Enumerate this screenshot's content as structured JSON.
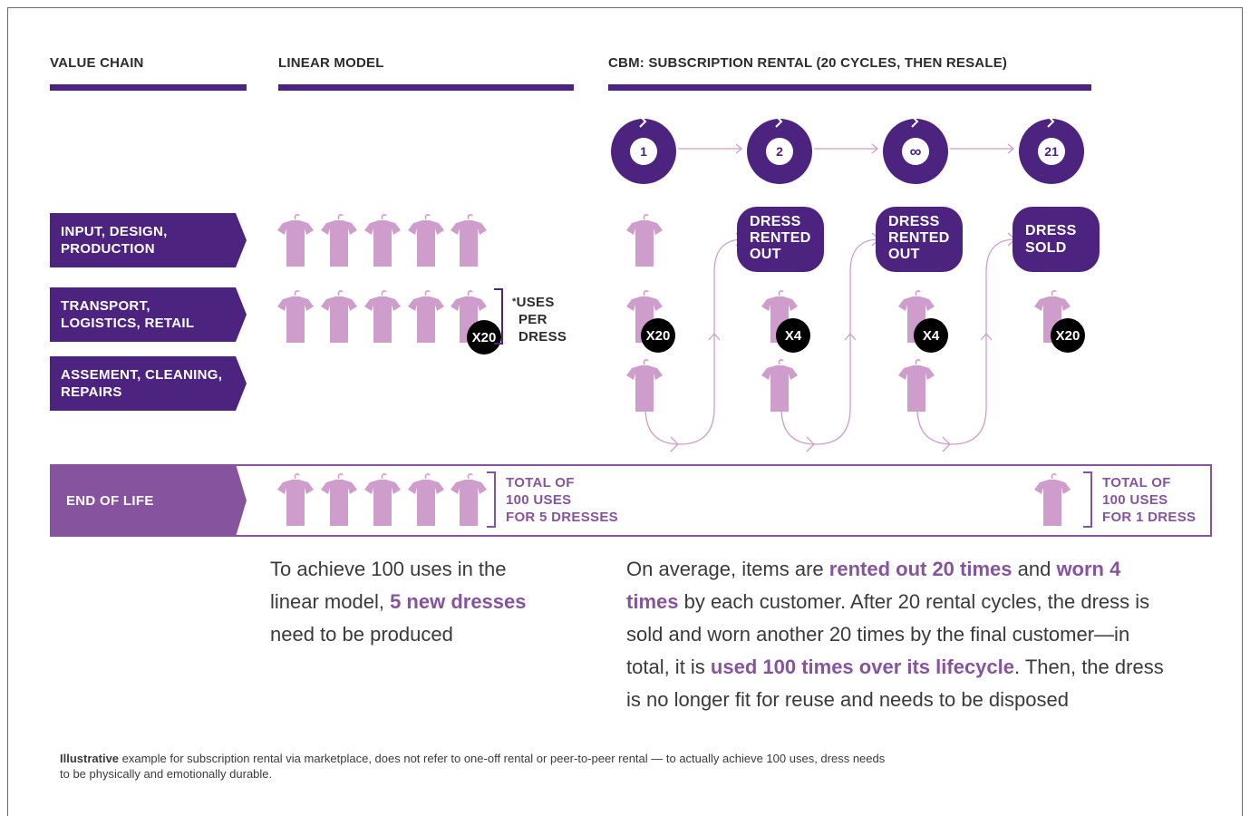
{
  "headers": {
    "value_chain": "VALUE CHAIN",
    "linear_model": "LINEAR MODEL",
    "cbm": "CBM: SUBSCRIPTION RENTAL (20 CYCLES, THEN RESALE)"
  },
  "stages": [
    {
      "line1": "INPUT, DESIGN,",
      "line2": "PRODUCTION"
    },
    {
      "line1": "TRANSPORT,",
      "line2": "LOGISTICS, RETAIL"
    },
    {
      "line1": "ASSEMENT, CLEANING,",
      "line2": "REPAIRS"
    },
    {
      "line1": "END OF LIFE",
      "line2": ""
    }
  ],
  "cycles": [
    "1",
    "2",
    "∞",
    "21"
  ],
  "badges": {
    "linear": "X20",
    "c1": "X20",
    "c2": "X4",
    "c3": "X4",
    "c4": "X20",
    "star": "*"
  },
  "uses_note": {
    "star": "*",
    "line1": "USES",
    "line2": "PER",
    "line3": "DRESS"
  },
  "pills": {
    "rented": {
      "line1": "DRESS",
      "line2": "RENTED",
      "line3": "OUT"
    },
    "sold": {
      "line1": "DRESS",
      "line2": "SOLD"
    }
  },
  "totals": {
    "linear": {
      "line1": "TOTAL OF",
      "line2": "100 USES",
      "line3": "FOR 5 DRESSES"
    },
    "cbm": {
      "line1": "TOTAL OF",
      "line2": "100 USES",
      "line3": "FOR 1 DRESS"
    }
  },
  "linear_desc": {
    "p1": "To achieve 100 uses in the",
    "p2": "linear model, ",
    "b1": "5 new dresses",
    "p3": "need to be produced"
  },
  "cbm_desc": {
    "p1": "On average, items are ",
    "b1": "rented out 20 times",
    "p2": " and ",
    "b2": "worn 4",
    "b3": "times",
    "p3": " by each customer. After 20 rental cycles, the dress is",
    "p4": "sold and worn another 20 times by the final customer—in",
    "p5": "total, it is ",
    "b4": "used 100 times over its lifecycle",
    "p6": ". Then, the dress",
    "p7": "is no longer fit for reuse and needs to be disposed"
  },
  "footnote": {
    "bold": "Illustrative",
    "text1": " example  for subscription rental via marketplace, does not refer to one-off rental or peer-to-peer rental — to actually achieve 100 uses, dress needs",
    "text2": "to be physically and emotionally durable."
  },
  "colors": {
    "dark_purple": "#4c237f",
    "light_purple": "#86539f",
    "shirt": "#cf9dcb"
  }
}
